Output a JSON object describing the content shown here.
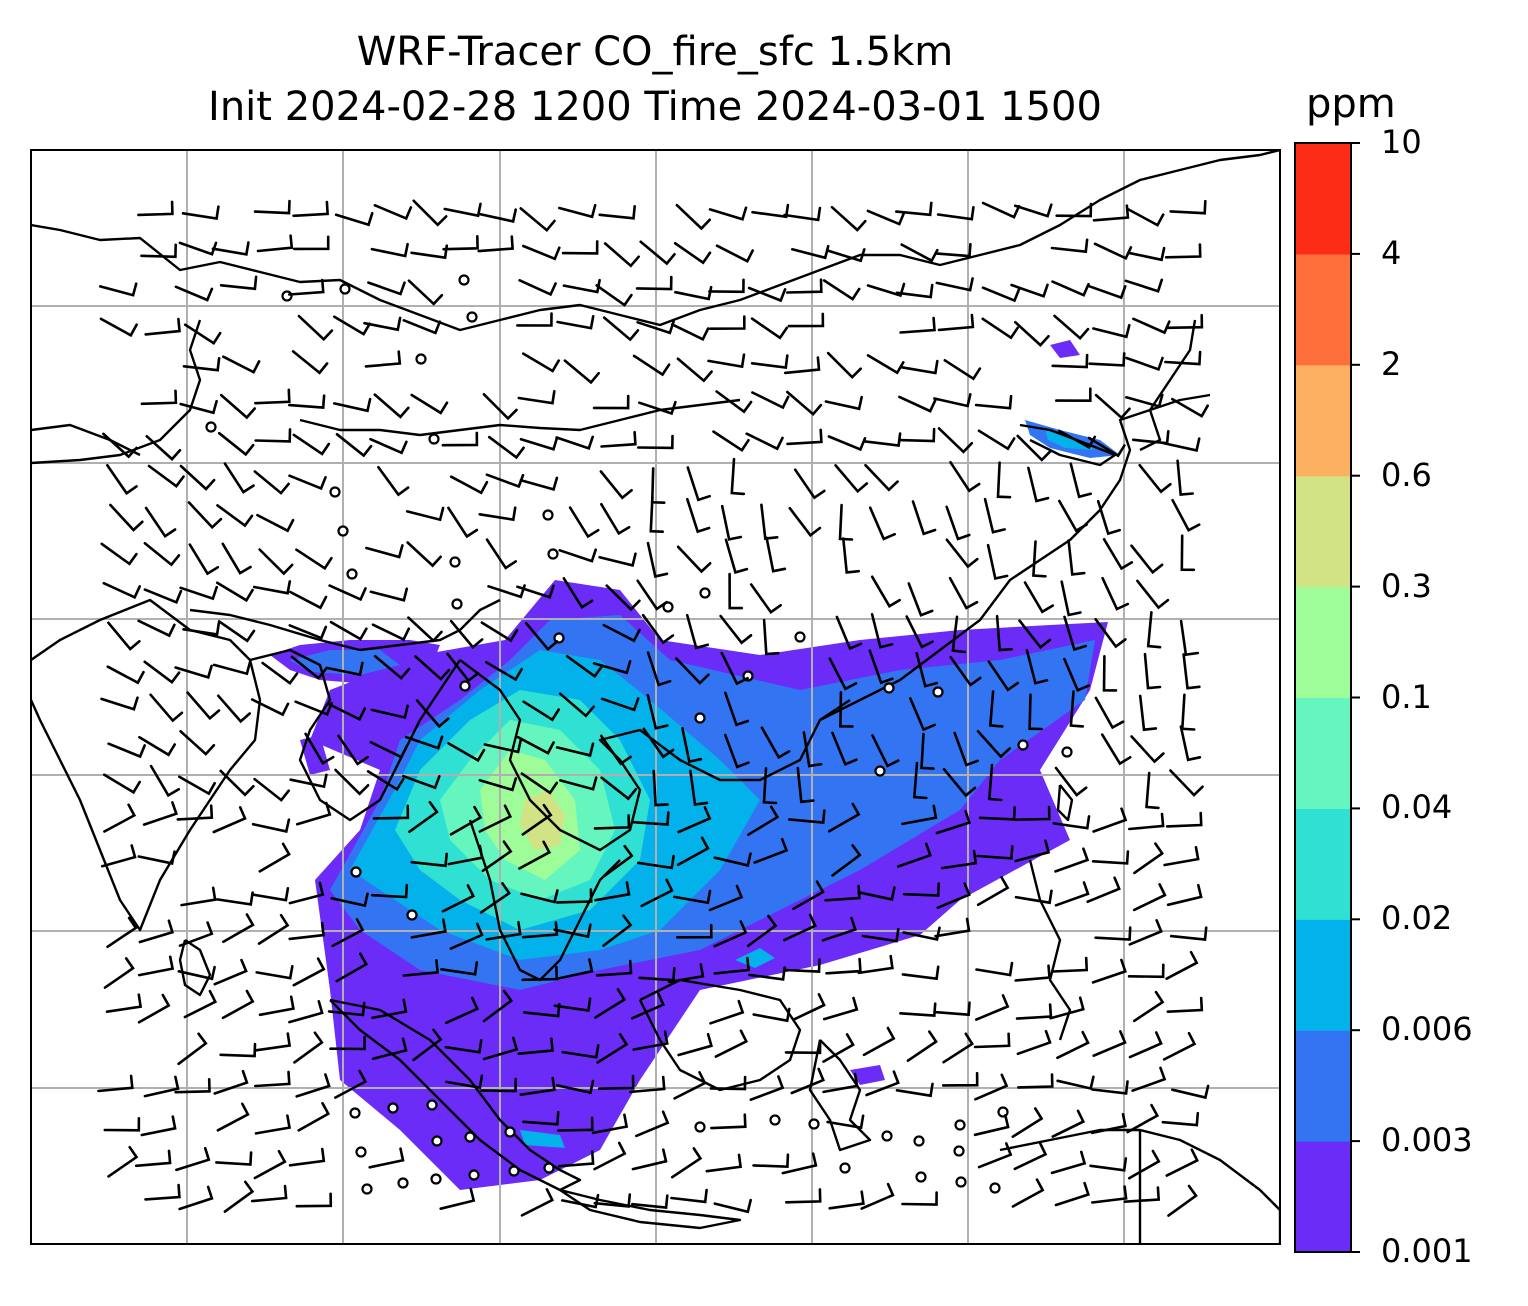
{
  "chart_data": {
    "type": "contourf_map",
    "title_line1": "WRF-Tracer CO_fire_sfc 1.5km",
    "title_line2": "Init 2024-02-28 1200 Time 2024-03-01 1500",
    "colorbar": {
      "units_label": "ppm",
      "levels": [
        "0.001",
        "0.003",
        "0.006",
        "0.02",
        "0.04",
        "0.1",
        "0.3",
        "0.6",
        "2",
        "4",
        "10"
      ],
      "colors": [
        "#6a2cf6",
        "#3274f2",
        "#04b2eb",
        "#30e0d2",
        "#65f6c0",
        "#9efc99",
        "#d1e384",
        "#fdb05f",
        "#ff6f3c",
        "#fc2c17"
      ]
    },
    "overlay": "wind barbs and calm circles over coastlines with lat/lon grid",
    "grid": true
  },
  "colors": {
    "coastline": "#000000",
    "gridline": "#b0b0b0"
  }
}
